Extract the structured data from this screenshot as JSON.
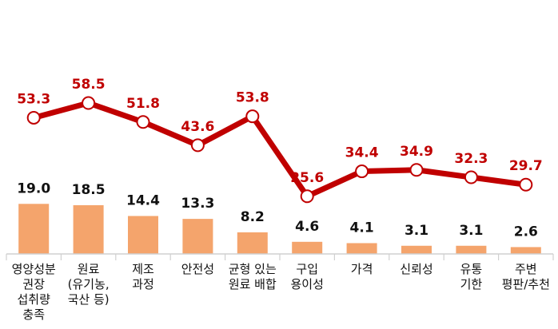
{
  "chart_data": {
    "type": "bar",
    "categories": [
      [
        "영양성분",
        "권장",
        "섭취량",
        "충족"
      ],
      [
        "원료",
        "(유기농,",
        "국산 등)"
      ],
      [
        "제조",
        "과정"
      ],
      [
        "안전성"
      ],
      [
        "균형 있는",
        "원료 배합"
      ],
      [
        "구입",
        "용이성"
      ],
      [
        "가격"
      ],
      [
        "신뢰성"
      ],
      [
        "유통",
        "기한"
      ],
      [
        "주변",
        "평판/추천"
      ]
    ],
    "series": [
      {
        "type": "bar",
        "values": [
          19.0,
          18.5,
          14.4,
          13.3,
          8.2,
          4.6,
          4.1,
          3.1,
          3.1,
          2.6
        ],
        "labels": [
          "19.0",
          "18.5",
          "14.4",
          "13.3",
          "8.2",
          "4.6",
          "4.1",
          "3.1",
          "3.1",
          "2.6"
        ],
        "color": "#f4a46c"
      },
      {
        "type": "line",
        "values": [
          53.3,
          58.5,
          51.8,
          43.6,
          53.8,
          25.6,
          34.4,
          34.9,
          32.3,
          29.7
        ],
        "labels": [
          "53.3",
          "58.5",
          "51.8",
          "43.6",
          "53.8",
          "25.6",
          "34.4",
          "34.9",
          "32.3",
          "29.7"
        ],
        "color": "#c00000",
        "marker_fill": "#ffffff"
      }
    ],
    "axis_line_color": "#d0d0d0",
    "legend": "none",
    "grid": false
  }
}
